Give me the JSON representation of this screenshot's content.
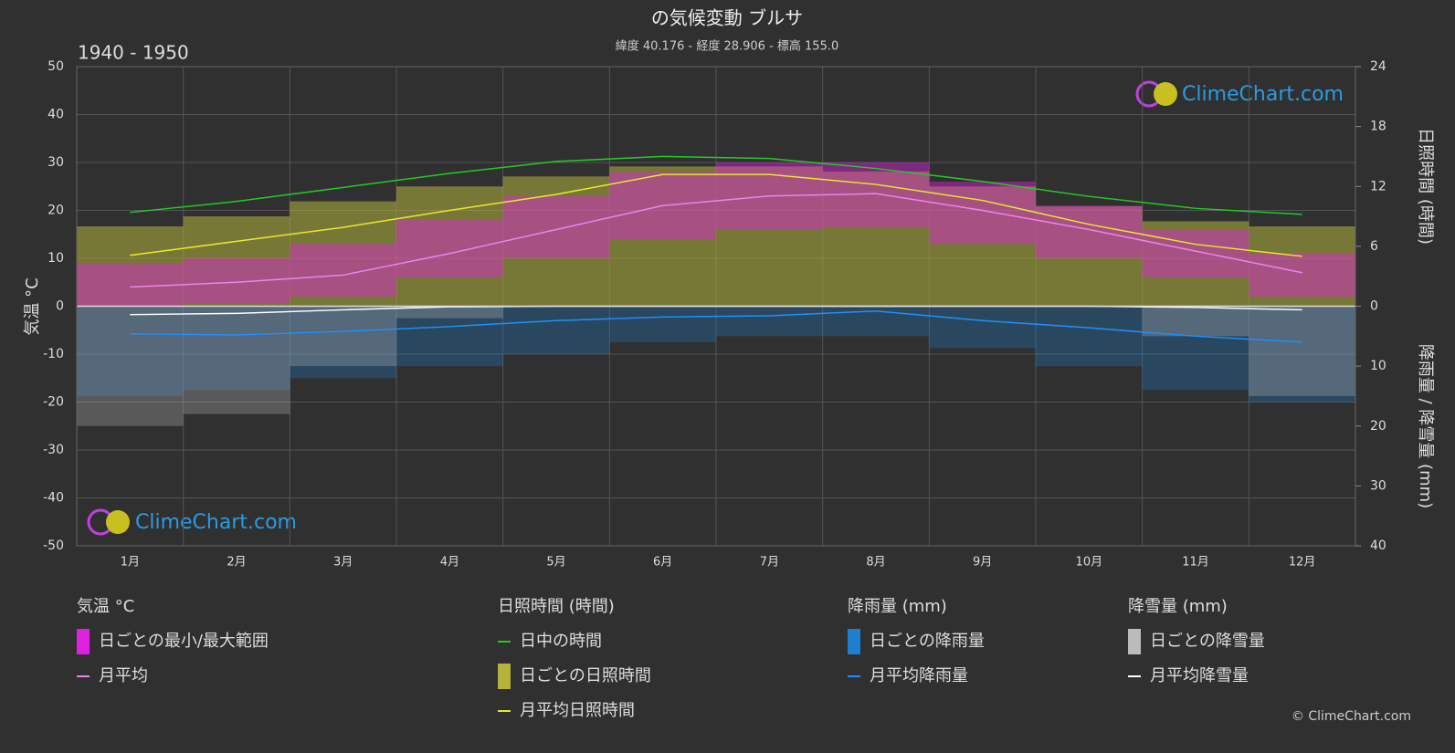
{
  "chart_data": {
    "type": "climate",
    "title": "の気候変動 ブルサ",
    "subtitle": "緯度 40.176 - 経度 28.906 - 標高 155.0",
    "period": "1940 - 1950",
    "watermark": "ClimeChart.com",
    "copyright": "© ClimeChart.com",
    "ylabel": "気温 °C",
    "y2label": "日照時間 (時間)",
    "y3label": "降雨量 / 降雪量 (mm)",
    "categories": [
      "1月",
      "2月",
      "3月",
      "4月",
      "5月",
      "6月",
      "7月",
      "8月",
      "9月",
      "10月",
      "11月",
      "12月"
    ],
    "ylim": [
      -50,
      50
    ],
    "yticks": [
      50,
      40,
      30,
      20,
      10,
      0,
      -10,
      -20,
      -30,
      -40,
      -50
    ],
    "sunshine_lim": [
      0,
      24
    ],
    "sunshine_ticks": [
      24,
      18,
      12,
      6,
      0
    ],
    "precip_lim": [
      0,
      40
    ],
    "precip_ticks": [
      10,
      20,
      30,
      40
    ],
    "grid": true,
    "legend_groups": [
      "気温 °C",
      "日照時間 (時間)",
      "降雨量 (mm)",
      "降雪量 (mm)"
    ],
    "series": [
      {
        "name": "日ごとの最小/最大範囲",
        "color": "#e020e0",
        "kind": "range",
        "group": 0,
        "low": [
          0,
          0.5,
          2,
          6,
          10,
          14,
          16,
          16.5,
          13,
          10,
          6,
          2
        ],
        "high": [
          9,
          10,
          13,
          18,
          23,
          28,
          30,
          30,
          26,
          21,
          16,
          11
        ]
      },
      {
        "name": "月平均",
        "color": "#ee82ee",
        "kind": "line",
        "group": 0,
        "axis": "y",
        "values": [
          4,
          5,
          6.5,
          11,
          16,
          21,
          23,
          23.5,
          20,
          16,
          11.5,
          7
        ]
      },
      {
        "name": "日中の時間",
        "color": "#22cc22",
        "kind": "line",
        "group": 1,
        "axis": "sun",
        "values": [
          9.4,
          10.5,
          11.9,
          13.3,
          14.5,
          15.0,
          14.8,
          13.8,
          12.5,
          11.0,
          9.8,
          9.2
        ]
      },
      {
        "name": "日ごとの日照時間",
        "color": "#b4b43c",
        "kind": "bars",
        "group": 1,
        "axis": "sun",
        "values": [
          8,
          9,
          10.5,
          12,
          13,
          14,
          14,
          13.5,
          12,
          10,
          8.5,
          8
        ]
      },
      {
        "name": "月平均日照時間",
        "color": "#e8e830",
        "kind": "line",
        "group": 1,
        "axis": "sun",
        "values": [
          5.1,
          6.5,
          7.9,
          9.6,
          11.2,
          13.2,
          13.2,
          12.2,
          10.6,
          8.2,
          6.2,
          5.0
        ]
      },
      {
        "name": "日ごとの降雨量",
        "color": "#1f7fcf",
        "kind": "bars",
        "group": 2,
        "axis": "precip",
        "values": [
          15,
          14,
          12,
          10,
          8,
          6,
          5,
          5,
          7,
          10,
          14,
          16
        ]
      },
      {
        "name": "月平均降雨量",
        "color": "#1e90ff",
        "kind": "line",
        "group": 2,
        "axis": "precip",
        "values": [
          4.6,
          4.8,
          4.2,
          3.4,
          2.4,
          1.8,
          1.6,
          0.8,
          2.4,
          3.6,
          5.0,
          6.0
        ]
      },
      {
        "name": "日ごとの降雪量",
        "color": "#bbbbbb",
        "kind": "bars",
        "group": 3,
        "axis": "precip",
        "values": [
          20,
          18,
          10,
          2,
          0,
          0,
          0,
          0,
          0,
          0,
          5,
          15
        ]
      },
      {
        "name": "月平均降雪量",
        "color": "#ffffff",
        "kind": "line",
        "group": 3,
        "axis": "precip",
        "values": [
          1.4,
          1.2,
          0.6,
          0.1,
          0,
          0,
          0,
          0,
          0,
          0,
          0.2,
          0.6
        ]
      }
    ]
  }
}
